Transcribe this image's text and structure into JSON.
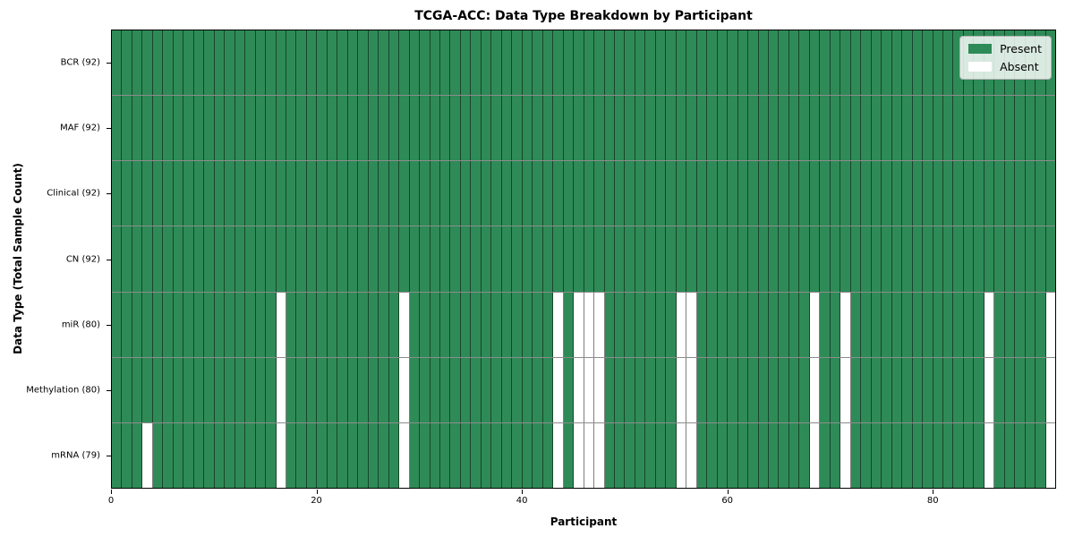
{
  "colors": {
    "present": "#2e8b57",
    "absent": "#ffffff",
    "grid_line": "rgba(0,0,0,0.5)",
    "row_line": "rgba(0,0,0,0.45)",
    "spine": "#000000"
  },
  "legend": {
    "present_label": "Present",
    "absent_label": "Absent"
  },
  "chart_data": {
    "type": "heatmap",
    "title": "TCGA-ACC: Data Type Breakdown by Participant",
    "xlabel": "Participant",
    "ylabel": "Data Type (Total Sample Count)",
    "n_participants": 92,
    "x_ticks": [
      0,
      20,
      40,
      60,
      80
    ],
    "x_range": [
      0,
      92
    ],
    "legend_entries": [
      "Present",
      "Absent"
    ],
    "cell_states": {
      "present": 1,
      "absent": 0
    },
    "rows": [
      {
        "label": "BCR (92)",
        "data_type": "BCR",
        "present_count": 92,
        "absent_participants": []
      },
      {
        "label": "MAF (92)",
        "data_type": "MAF",
        "present_count": 92,
        "absent_participants": []
      },
      {
        "label": "Clinical (92)",
        "data_type": "Clinical",
        "present_count": 92,
        "absent_participants": []
      },
      {
        "label": "CN (92)",
        "data_type": "CN",
        "present_count": 92,
        "absent_participants": []
      },
      {
        "label": "miR (80)",
        "data_type": "miR",
        "present_count": 80,
        "absent_participants": [
          16,
          28,
          43,
          45,
          46,
          47,
          55,
          56,
          68,
          71,
          85,
          91
        ]
      },
      {
        "label": "Methylation (80)",
        "data_type": "Methylation",
        "present_count": 80,
        "absent_participants": [
          16,
          28,
          43,
          45,
          46,
          47,
          55,
          56,
          68,
          71,
          85,
          91
        ]
      },
      {
        "label": "mRNA (79)",
        "data_type": "mRNA",
        "present_count": 79,
        "absent_participants": [
          3,
          16,
          28,
          43,
          45,
          46,
          47,
          55,
          56,
          68,
          71,
          85,
          91
        ]
      }
    ]
  }
}
